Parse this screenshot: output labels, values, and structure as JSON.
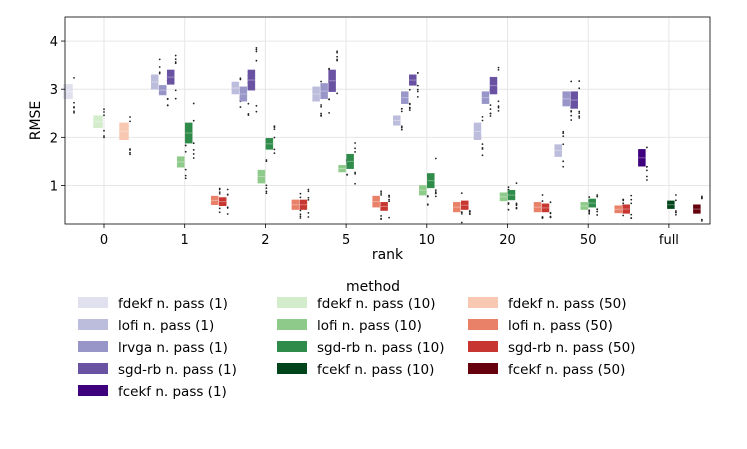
{
  "chart_data": {
    "type": "box",
    "xlabel": "rank",
    "ylabel": "RMSE",
    "ylim": [
      0.2,
      4.5
    ],
    "yticks": [
      "1",
      "2",
      "3",
      "4"
    ],
    "grid": true,
    "categories": [
      "0",
      "1",
      "2",
      "5",
      "10",
      "20",
      "50",
      "full"
    ],
    "legend": {
      "title": "method",
      "placement": "below",
      "columns": 3
    },
    "series": [
      {
        "name": "fdekf n. pass (1)",
        "color": "#e1e0ee",
        "boxes": [
          [
            0,
            2.8,
            3.1
          ]
        ]
      },
      {
        "name": "lofi n. pass (1)",
        "color": "#bcbcdc",
        "boxes": [
          [
            1,
            3.0,
            3.3
          ],
          [
            2,
            2.9,
            3.15
          ],
          [
            3,
            2.75,
            3.05
          ],
          [
            4,
            2.25,
            2.45
          ],
          [
            5,
            1.95,
            2.3
          ],
          [
            6,
            1.6,
            1.85
          ]
        ]
      },
      {
        "name": "lrvga n. pass (1)",
        "color": "#9896c8",
        "boxes": [
          [
            1,
            2.88,
            3.08
          ],
          [
            2,
            2.75,
            3.05
          ],
          [
            3,
            2.8,
            3.12
          ],
          [
            4,
            2.7,
            2.95
          ],
          [
            5,
            2.7,
            2.95
          ],
          [
            6,
            2.65,
            2.95
          ]
        ]
      },
      {
        "name": "sgd-rb n. pass (1)",
        "color": "#6a52a3",
        "boxes": [
          [
            1,
            3.1,
            3.4
          ],
          [
            2,
            2.98,
            3.4
          ],
          [
            3,
            2.95,
            3.4
          ],
          [
            4,
            3.08,
            3.3
          ],
          [
            5,
            2.9,
            3.25
          ],
          [
            6,
            2.6,
            2.95
          ]
        ]
      },
      {
        "name": "fcekf n. pass (1)",
        "color": "#3f007d",
        "boxes": [
          [
            7,
            1.4,
            1.75
          ]
        ]
      },
      {
        "name": "fdekf n. pass (10)",
        "color": "#d3edcc",
        "boxes": [
          [
            0,
            2.2,
            2.45
          ]
        ]
      },
      {
        "name": "lofi n. pass (10)",
        "color": "#8ecb8a",
        "boxes": [
          [
            1,
            1.38,
            1.6
          ],
          [
            2,
            1.05,
            1.32
          ],
          [
            3,
            1.28,
            1.42
          ],
          [
            4,
            0.8,
            1.0
          ],
          [
            5,
            0.68,
            0.85
          ],
          [
            6,
            0.5,
            0.65
          ]
        ]
      },
      {
        "name": "sgd-rb n. pass (10)",
        "color": "#2f8b49",
        "boxes": [
          [
            1,
            1.88,
            2.3
          ],
          [
            2,
            1.75,
            1.98
          ],
          [
            3,
            1.35,
            1.65
          ],
          [
            4,
            0.95,
            1.25
          ],
          [
            5,
            0.7,
            0.9
          ],
          [
            6,
            0.55,
            0.72
          ]
        ]
      },
      {
        "name": "fcekf n. pass (10)",
        "color": "#00441b",
        "boxes": [
          [
            7,
            0.52,
            0.68
          ]
        ]
      },
      {
        "name": "fdekf n. pass (50)",
        "color": "#f8c8b2",
        "boxes": [
          [
            0,
            1.95,
            2.3
          ]
        ]
      },
      {
        "name": "lofi n. pass (50)",
        "color": "#e98068",
        "boxes": [
          [
            1,
            0.6,
            0.78
          ],
          [
            2,
            0.5,
            0.7
          ],
          [
            3,
            0.55,
            0.78
          ],
          [
            4,
            0.45,
            0.65
          ],
          [
            5,
            0.45,
            0.65
          ],
          [
            6,
            0.43,
            0.58
          ]
        ]
      },
      {
        "name": "sgd-rb n. pass (50)",
        "color": "#c73630",
        "boxes": [
          [
            1,
            0.58,
            0.75
          ],
          [
            2,
            0.5,
            0.7
          ],
          [
            3,
            0.48,
            0.65
          ],
          [
            4,
            0.5,
            0.68
          ],
          [
            5,
            0.45,
            0.62
          ],
          [
            6,
            0.42,
            0.6
          ]
        ]
      },
      {
        "name": "fcekf n. pass (50)",
        "color": "#67000d",
        "boxes": [
          [
            7,
            0.42,
            0.6
          ]
        ]
      }
    ]
  }
}
